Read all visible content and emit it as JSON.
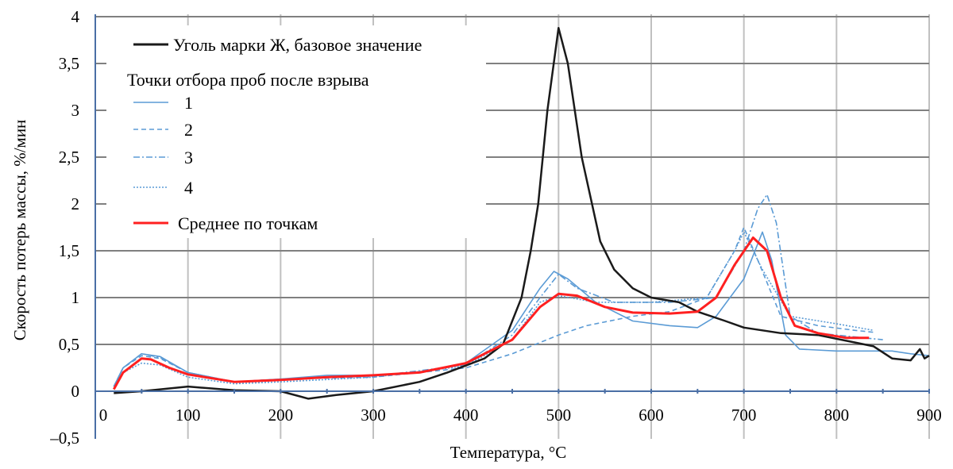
{
  "chart_data": {
    "type": "line",
    "title": "",
    "xlabel": "Температура, °С",
    "ylabel": "Скорость потерь массы, %/мин",
    "xlim": [
      0,
      900
    ],
    "ylim": [
      -0.5,
      4
    ],
    "x_ticks": [
      0,
      100,
      200,
      300,
      400,
      500,
      600,
      700,
      800,
      900
    ],
    "x_tick_labels": [
      "0",
      "100",
      "200",
      "300",
      "400",
      "500",
      "600",
      "700",
      "800",
      "900"
    ],
    "y_ticks": [
      -0.5,
      0,
      0.5,
      1,
      1.5,
      2,
      2.5,
      3,
      3.5,
      4
    ],
    "y_tick_labels": [
      "–0,5",
      "0",
      "0,5",
      "1",
      "1,5",
      "2",
      "2,5",
      "3",
      "3,5",
      "4"
    ],
    "grid": true,
    "legend_position": "top-left",
    "legend_group_title": "Точки отбора проб после взрыва",
    "series": [
      {
        "name": "Уголь марки Ж, базовое значение",
        "color": "#1a1a1a",
        "style": "solid",
        "x": [
          20,
          50,
          100,
          150,
          200,
          230,
          260,
          300,
          350,
          380,
          420,
          440,
          460,
          470,
          478,
          488,
          500,
          510,
          525,
          545,
          560,
          580,
          600,
          630,
          650,
          680,
          700,
          740,
          780,
          820,
          840,
          860,
          880,
          890,
          895,
          900
        ],
        "y": [
          -0.02,
          0,
          0.05,
          0.01,
          0,
          -0.08,
          -0.04,
          0,
          0.1,
          0.2,
          0.35,
          0.5,
          1.0,
          1.5,
          2.0,
          3.0,
          3.88,
          3.5,
          2.5,
          1.6,
          1.3,
          1.1,
          1.0,
          0.95,
          0.85,
          0.75,
          0.68,
          0.62,
          0.6,
          0.52,
          0.48,
          0.35,
          0.33,
          0.45,
          0.35,
          0.38
        ]
      },
      {
        "name": "1",
        "color": "#5b9bd5",
        "style": "solid",
        "x": [
          20,
          30,
          50,
          70,
          100,
          150,
          200,
          250,
          300,
          350,
          400,
          450,
          480,
          495,
          510,
          540,
          580,
          620,
          650,
          670,
          700,
          720,
          730,
          745,
          760,
          800,
          860,
          880,
          900
        ],
        "y": [
          0.05,
          0.25,
          0.4,
          0.37,
          0.2,
          0.1,
          0.13,
          0.17,
          0.17,
          0.2,
          0.3,
          0.65,
          1.1,
          1.28,
          1.2,
          0.95,
          0.75,
          0.7,
          0.68,
          0.8,
          1.2,
          1.7,
          1.4,
          0.6,
          0.45,
          0.43,
          0.43,
          0.4,
          0.38
        ]
      },
      {
        "name": "2",
        "color": "#5b9bd5",
        "style": "dashed",
        "x": [
          20,
          30,
          50,
          70,
          100,
          150,
          200,
          300,
          400,
          450,
          500,
          530,
          580,
          620,
          660,
          690,
          700,
          715,
          740,
          780,
          820,
          840
        ],
        "y": [
          0.05,
          0.25,
          0.38,
          0.35,
          0.2,
          0.1,
          0.13,
          0.15,
          0.25,
          0.4,
          0.6,
          0.7,
          0.8,
          0.85,
          1.0,
          1.5,
          1.75,
          1.4,
          0.8,
          0.7,
          0.65,
          0.63
        ]
      },
      {
        "name": "3",
        "color": "#5b9bd5",
        "style": "dashdot",
        "x": [
          20,
          30,
          50,
          70,
          100,
          150,
          200,
          300,
          400,
          450,
          480,
          500,
          520,
          560,
          620,
          670,
          700,
          715,
          725,
          735,
          750,
          780,
          820,
          850
        ],
        "y": [
          0.05,
          0.25,
          0.4,
          0.36,
          0.2,
          0.1,
          0.13,
          0.16,
          0.28,
          0.6,
          1.0,
          1.25,
          1.1,
          0.95,
          0.95,
          1.0,
          1.5,
          1.95,
          2.1,
          1.8,
          0.8,
          0.62,
          0.58,
          0.55
        ]
      },
      {
        "name": "4",
        "color": "#5b9bd5",
        "style": "dotted",
        "x": [
          20,
          30,
          50,
          70,
          100,
          150,
          200,
          300,
          400,
          450,
          480,
          500,
          540,
          600,
          660,
          690,
          700,
          720,
          750,
          800,
          840
        ],
        "y": [
          0.03,
          0.2,
          0.3,
          0.28,
          0.15,
          0.08,
          0.1,
          0.15,
          0.27,
          0.55,
          0.95,
          1.02,
          0.95,
          0.95,
          1.0,
          1.5,
          1.7,
          1.3,
          0.8,
          0.72,
          0.65
        ]
      },
      {
        "name": "Среднее по точкам",
        "color": "#ff2020",
        "style": "solid",
        "x": [
          20,
          30,
          50,
          60,
          80,
          100,
          150,
          200,
          250,
          300,
          350,
          400,
          450,
          480,
          500,
          520,
          550,
          580,
          620,
          650,
          670,
          690,
          710,
          725,
          740,
          755,
          780,
          810,
          835
        ],
        "y": [
          0.02,
          0.2,
          0.35,
          0.34,
          0.25,
          0.18,
          0.1,
          0.12,
          0.15,
          0.17,
          0.2,
          0.3,
          0.55,
          0.9,
          1.04,
          1.02,
          0.9,
          0.84,
          0.83,
          0.85,
          1.0,
          1.35,
          1.64,
          1.5,
          1.0,
          0.7,
          0.62,
          0.57,
          0.57
        ]
      }
    ]
  }
}
